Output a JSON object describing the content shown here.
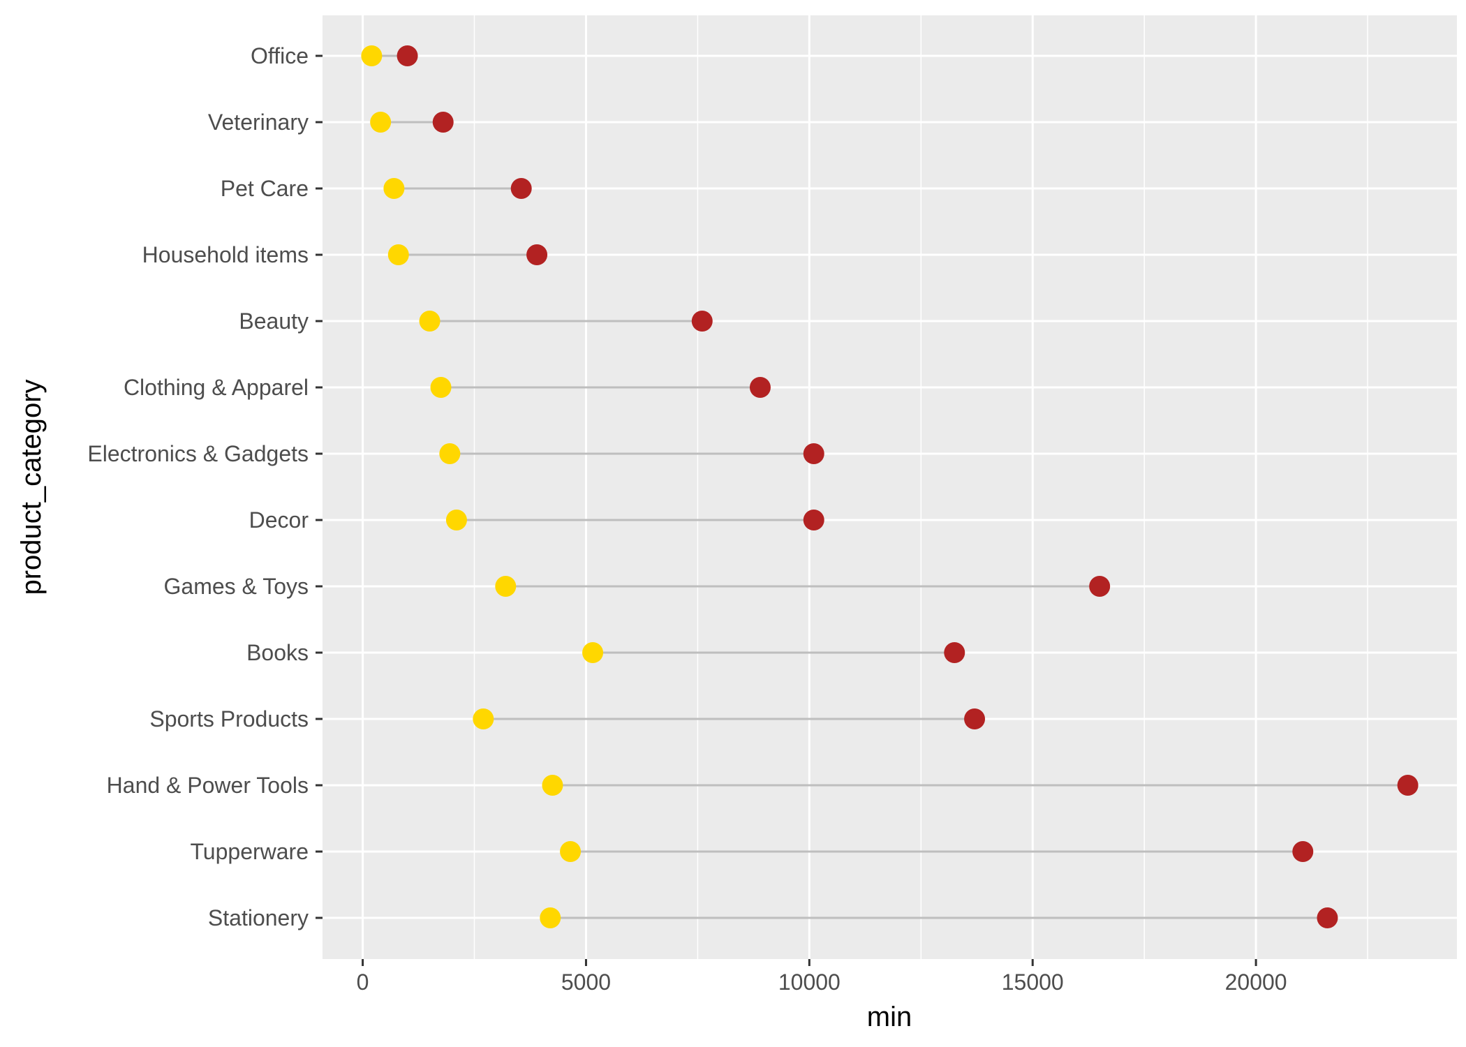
{
  "chart_data": {
    "type": "dumbbell",
    "xlabel": "min",
    "ylabel": "product_category",
    "xlim": [
      -900,
      24500
    ],
    "x_ticks": [
      0,
      5000,
      10000,
      15000,
      20000
    ],
    "x_minor_ticks": [
      2500,
      7500,
      12500,
      17500,
      22500
    ],
    "grid": true,
    "legend": "none",
    "categories": [
      "Office",
      "Veterinary",
      "Pet Care",
      "Household items",
      "Beauty",
      "Clothing & Apparel",
      "Electronics & Gadgets",
      "Decor",
      "Games & Toys",
      "Books",
      "Sports Products",
      "Hand & Power Tools",
      "Tupperware",
      "Stationery"
    ],
    "series": [
      {
        "values": [
          200,
          400,
          700,
          800,
          1500,
          1750,
          1950,
          2100,
          3200,
          5150,
          2700,
          4250,
          4650,
          4200
        ]
      },
      {
        "values": [
          1000,
          1800,
          3550,
          3900,
          7600,
          8900,
          10100,
          10100,
          16500,
          13250,
          13700,
          23400,
          21050,
          21600
        ]
      }
    ],
    "colors": {
      "min_point": "#FFD700",
      "max_point": "#B22222",
      "segment": "#BEBEBE",
      "panel": "#EBEBEB",
      "gridline": "#FFFFFF",
      "tick": "#333333"
    }
  }
}
